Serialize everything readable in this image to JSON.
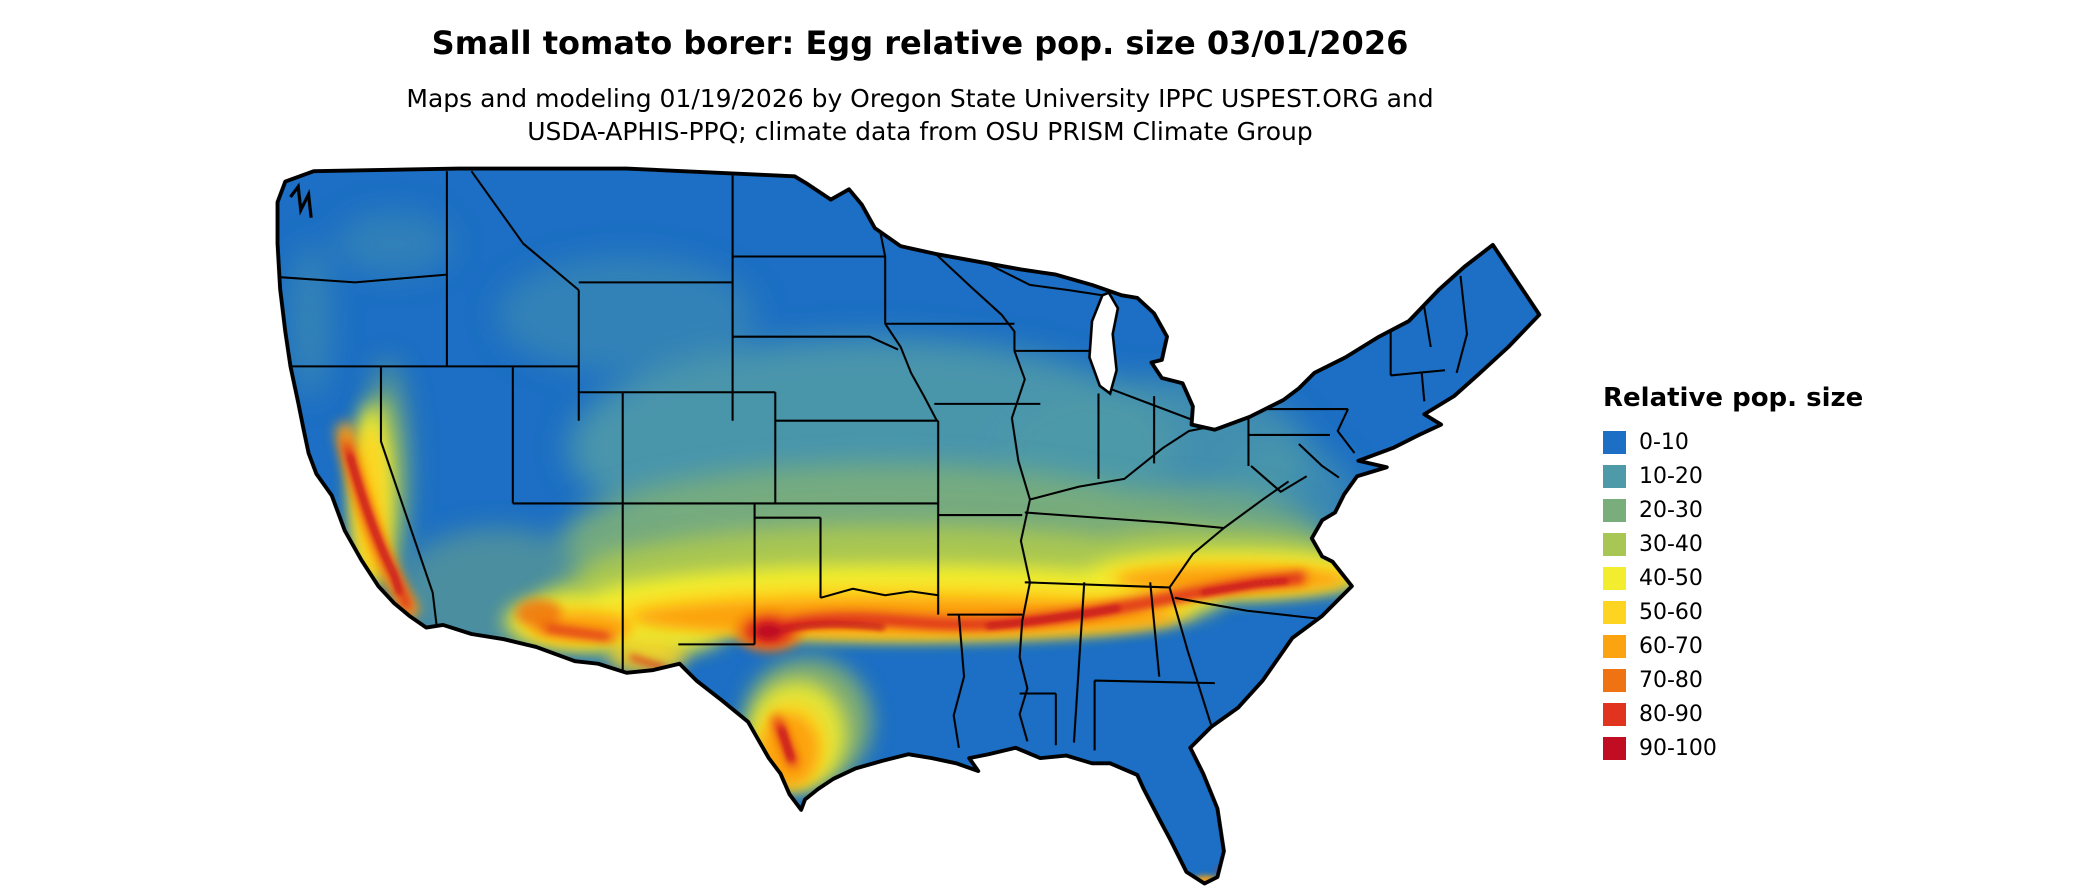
{
  "header": {
    "title": "Small tomato borer: Egg relative pop. size 03/01/2026",
    "subtitle_line1": "Maps and modeling 01/19/2026 by Oregon State University IPPC USPEST.ORG and",
    "subtitle_line2": "USDA-APHIS-PPQ; climate data from OSU PRISM Climate Group"
  },
  "map": {
    "base_color": "#1c6fc4",
    "outline_color": "#000000",
    "lake_color": "#ffffff"
  },
  "legend": {
    "title": "Relative pop. size",
    "items": [
      {
        "label": "0-10",
        "color": "#1c6fc4"
      },
      {
        "label": "10-20",
        "color": "#4f9aa8"
      },
      {
        "label": "20-30",
        "color": "#79ad7c"
      },
      {
        "label": "30-40",
        "color": "#a8c653"
      },
      {
        "label": "40-50",
        "color": "#f2ee2f"
      },
      {
        "label": "50-60",
        "color": "#fdd521"
      },
      {
        "label": "60-70",
        "color": "#fca311"
      },
      {
        "label": "70-80",
        "color": "#f07313"
      },
      {
        "label": "80-90",
        "color": "#e0341f"
      },
      {
        "label": "90-100",
        "color": "#c00d21"
      }
    ]
  }
}
